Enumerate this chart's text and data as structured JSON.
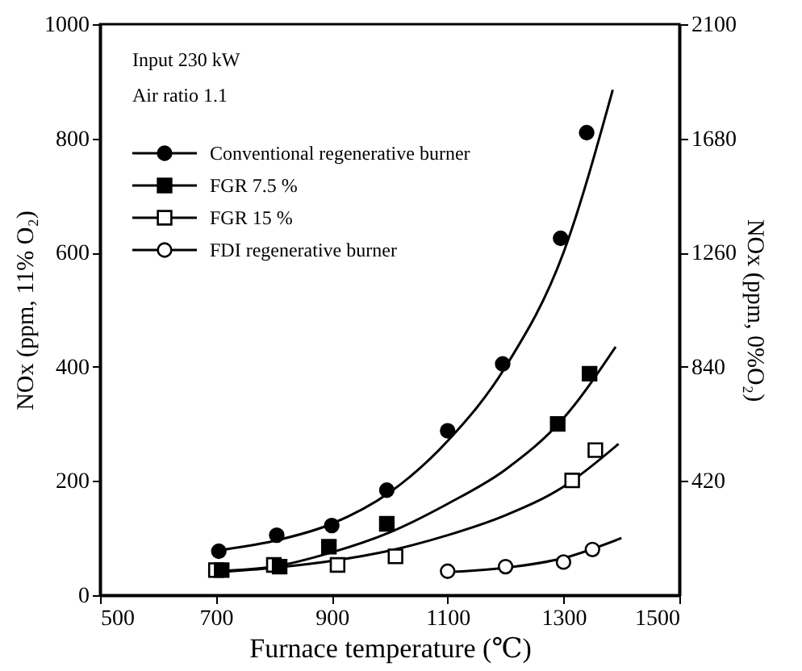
{
  "chart_data": {
    "type": "scatter",
    "xlabel": "Furnace temperature (℃)",
    "ylabel": "NOx (ppm, 11% O₂)",
    "y2label": "NOx (ppm, 0%O₂)",
    "annotations": [
      "Input 230 kW",
      "Air ratio 1.1"
    ],
    "xlim": [
      500,
      1500
    ],
    "xticks": [
      500,
      700,
      900,
      1100,
      1300,
      1500
    ],
    "ylim": [
      0,
      1000
    ],
    "yticks": [
      0,
      200,
      400,
      600,
      800,
      1000
    ],
    "y2lim": [
      0,
      2100
    ],
    "y2ticks": [
      420,
      840,
      1260,
      1680,
      2100
    ],
    "grid": false,
    "legend": "top left",
    "series": [
      {
        "name": "Conventional regenerative burner",
        "type": "scatter",
        "marker": "circle",
        "color": "#000000",
        "x": [
          705,
          805,
          900,
          995,
          1100,
          1195,
          1295,
          1340
        ],
        "values": [
          77,
          105,
          122,
          184,
          288,
          405,
          625,
          810
        ]
      },
      {
        "name": "FGR 7.5 %",
        "type": "scatter",
        "marker": "square",
        "color": "#000000",
        "x": [
          710,
          810,
          895,
          995,
          1290,
          1345
        ],
        "values": [
          44,
          50,
          85,
          125,
          300,
          388
        ]
      },
      {
        "name": "FGR 15 %",
        "type": "scatter",
        "marker": "square",
        "color": "#ffffff",
        "x": [
          700,
          800,
          910,
          1010,
          1315,
          1355
        ],
        "values": [
          44,
          53,
          53,
          68,
          201,
          254
        ]
      },
      {
        "name": "FDI regenerative burner",
        "type": "scatter",
        "marker": "circle",
        "color": "#ffffff",
        "x": [
          1100,
          1200,
          1300,
          1350
        ],
        "values": [
          42,
          50,
          58,
          80
        ]
      },
      {
        "type": "line",
        "color": "#000000",
        "x": [
          700,
          800,
          900,
          1000,
          1100,
          1200,
          1300,
          1385
        ],
        "values": [
          78,
          95,
          125,
          180,
          270,
          400,
          600,
          885
        ]
      },
      {
        "type": "line",
        "color": "#000000",
        "x": [
          700,
          800,
          900,
          1000,
          1100,
          1200,
          1300,
          1390
        ],
        "values": [
          42,
          50,
          75,
          110,
          160,
          220,
          310,
          435
        ]
      },
      {
        "type": "line",
        "color": "#000000",
        "x": [
          700,
          800,
          900,
          1000,
          1100,
          1200,
          1300,
          1395
        ],
        "values": [
          40,
          48,
          60,
          78,
          105,
          140,
          190,
          265
        ]
      },
      {
        "type": "line",
        "color": "#000000",
        "x": [
          1090,
          1200,
          1300,
          1400
        ],
        "values": [
          40,
          48,
          65,
          100
        ]
      }
    ]
  }
}
